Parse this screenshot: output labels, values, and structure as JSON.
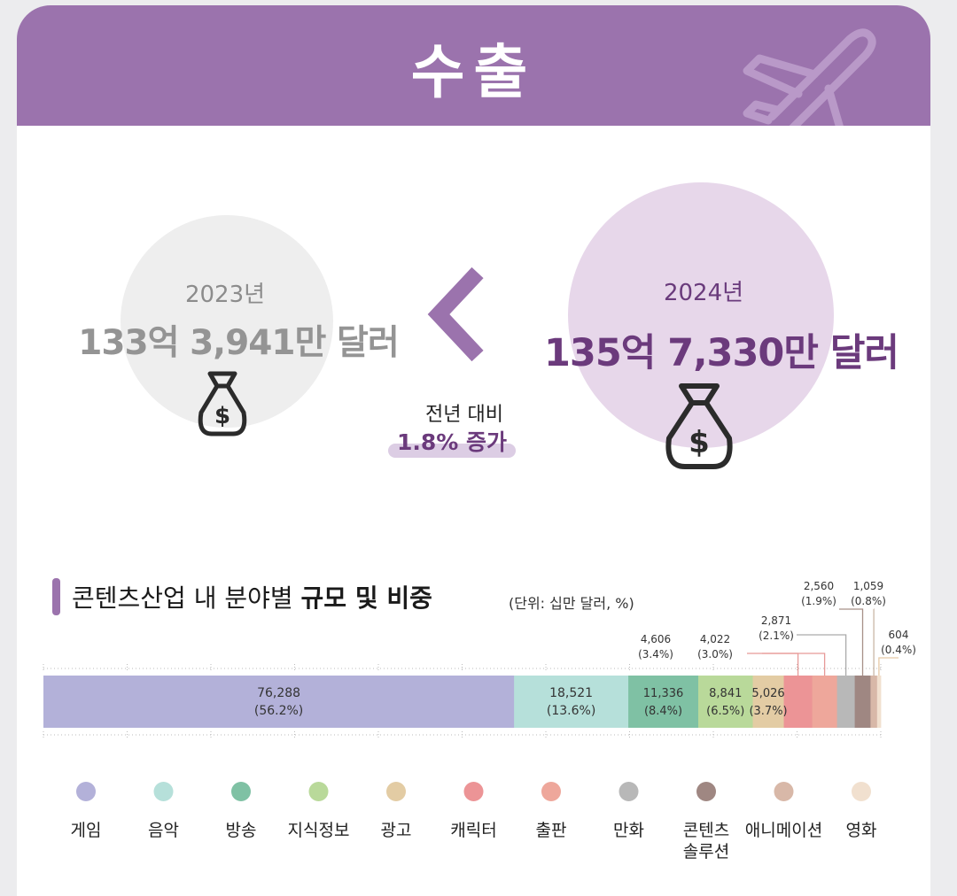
{
  "header": {
    "title": "수출"
  },
  "compare": {
    "prev": {
      "year": "2023년",
      "amount": "133억 3,941만 달러"
    },
    "curr": {
      "year": "2024년",
      "amount": "135억 7,330만 달러"
    },
    "change_label": "전년 대비",
    "change_value": "1.8% 증가"
  },
  "section": {
    "title_normal": "콘텐츠산업 내 분야별 ",
    "title_bold": "규모 및 비중",
    "unit": "(단위: 십만 달러, %)"
  },
  "colors": {
    "brand": "#9b73ad",
    "brand_dark": "#6b3a7c",
    "prev_bubble": "#eeeeee",
    "curr_bubble": "#e7d7ea"
  },
  "icons": [
    "airplane-icon",
    "money-bag-icon",
    "chevron-left-icon"
  ],
  "chart_data": {
    "type": "bar",
    "orientation": "horizontal-stacked-100",
    "categories": [
      "게임",
      "음악",
      "방송",
      "지식정보",
      "광고",
      "캐릭터",
      "출판",
      "만화",
      "콘텐츠 솔루션",
      "애니메이션",
      "영화"
    ],
    "values": [
      76288,
      18521,
      11336,
      8841,
      5026,
      4606,
      4022,
      2871,
      2560,
      1059,
      604
    ],
    "value_labels": [
      "76,288",
      "18,521",
      "11,336",
      "8,841",
      "5,026",
      "4,606",
      "4,022",
      "2,871",
      "2,560",
      "1,059",
      "604"
    ],
    "percent_labels": [
      "(56.2%)",
      "(13.6%)",
      "(8.4%)",
      "(6.5%)",
      "(3.7%)",
      "(3.4%)",
      "(3.0%)",
      "(2.1%)",
      "(1.9%)",
      "(0.8%)",
      "(0.4%)"
    ],
    "percents": [
      56.2,
      13.6,
      8.4,
      6.5,
      3.7,
      3.4,
      3.0,
      2.1,
      1.9,
      0.8,
      0.4
    ],
    "colors": [
      "#b3b1d9",
      "#b6e0da",
      "#7fc1a4",
      "#b9d99a",
      "#e3cca4",
      "#ec9496",
      "#eea79b",
      "#b8b8b8",
      "#9f8782",
      "#d8b8a8",
      "#f1e0cf"
    ],
    "legend_position": "bottom",
    "callouts": "above-right"
  }
}
